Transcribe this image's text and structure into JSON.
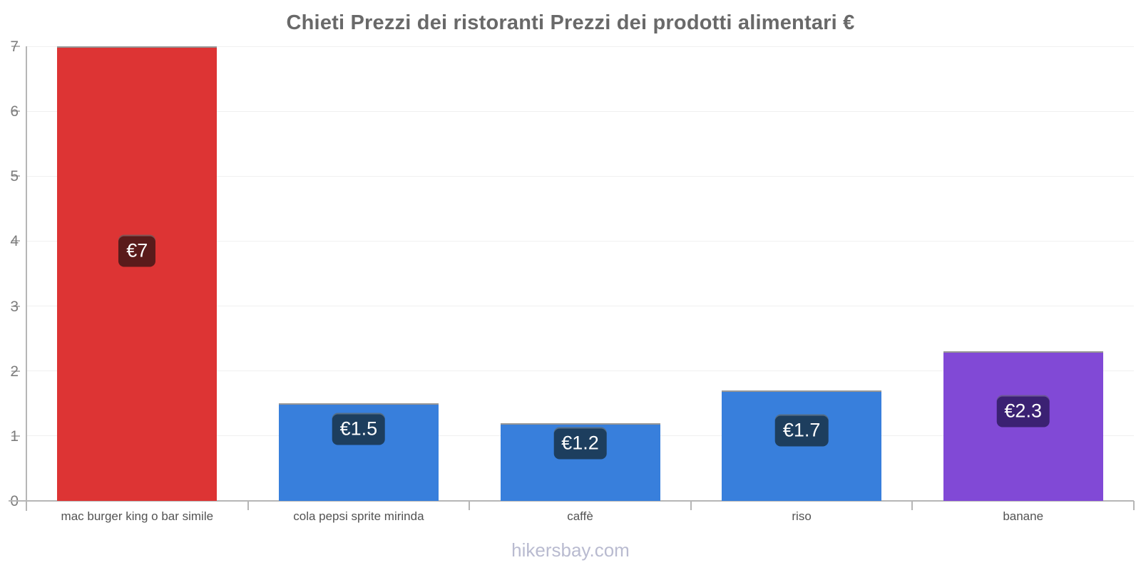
{
  "title": "Chieti Prezzi dei ristoranti Prezzi dei prodotti alimentari €",
  "footer": {
    "site_label": "hikersbay.com"
  },
  "chart_data": {
    "type": "bar",
    "title": "Chieti Prezzi dei ristoranti Prezzi dei prodotti alimentari €",
    "categories": [
      "mac burger king o bar simile",
      "cola pepsi sprite mirinda",
      "caffè",
      "riso",
      "banane"
    ],
    "values": [
      7,
      1.5,
      1.2,
      1.7,
      2.3
    ],
    "value_labels": [
      "€7",
      "€1.5",
      "€1.2",
      "€1.7",
      "€2.3"
    ],
    "bar_colors": [
      "#dd3434",
      "#387fdc",
      "#387fdc",
      "#387fdc",
      "#8149d6"
    ],
    "value_label_bg": [
      "#5a1b1b",
      "#1d3e5e",
      "#1d3e5e",
      "#1d3e5e",
      "#3b2173"
    ],
    "value_label_pos_fraction": [
      0.45,
      0.26,
      0.26,
      0.36,
      0.4
    ],
    "currency": "€",
    "xlabel": "",
    "ylabel": "",
    "ylim": [
      0,
      7
    ],
    "yticks": [
      0,
      1,
      2,
      3,
      4,
      5,
      6,
      7
    ],
    "grid": "horizontal-faint",
    "legend": "none",
    "grid_color": "#f0f0f0",
    "axis_color": "#b6b6b6",
    "tick_label_color": "#7d7d7d",
    "category_label_color": "#535353",
    "title_color": "#696969",
    "footer_color": "#b9bbd0"
  }
}
